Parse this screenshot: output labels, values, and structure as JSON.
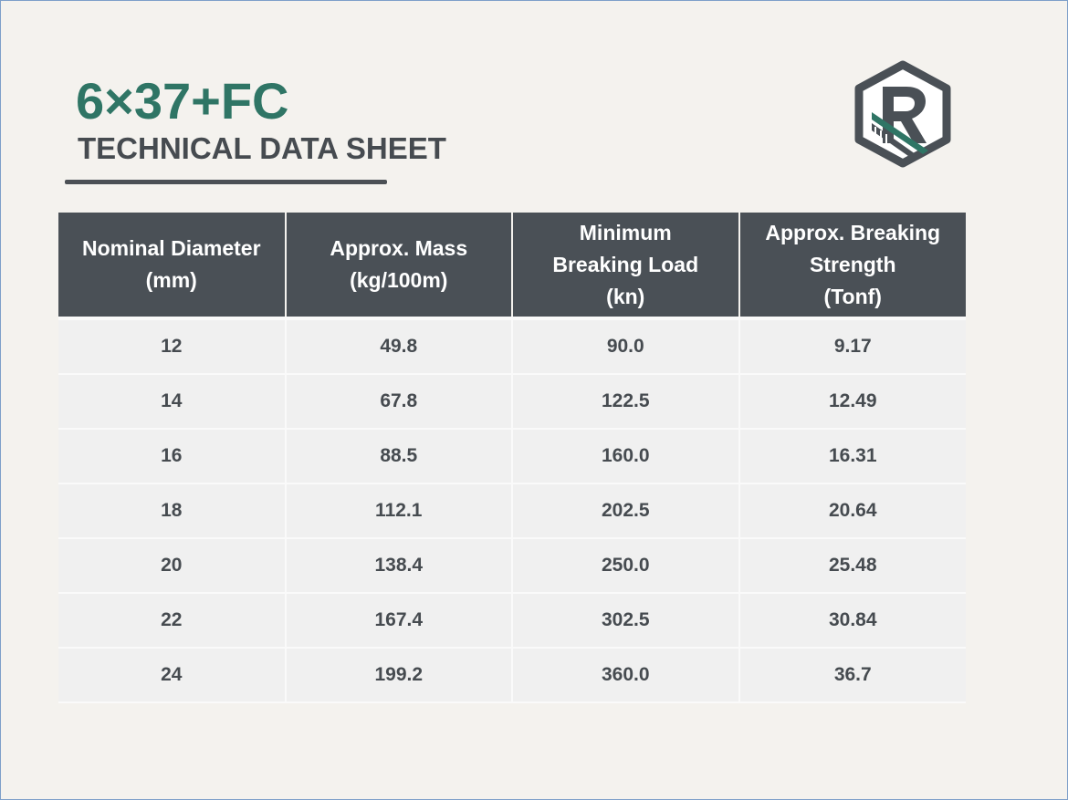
{
  "header": {
    "title": "6×37+FC",
    "subtitle": "TECHNICAL DATA SHEET"
  },
  "logo": {
    "icon": "r-hexagon-logo-icon",
    "letter": "R",
    "colors": {
      "outline": "#4a5056",
      "stripe": "#2f7565"
    }
  },
  "table": {
    "headers": [
      [
        "Nominal Diameter",
        "(mm)"
      ],
      [
        "Approx. Mass",
        "(kg/100m)"
      ],
      [
        "Minimum",
        "Breaking Load",
        "(kn)"
      ],
      [
        "Approx. Breaking",
        "Strength",
        "(Tonf)"
      ]
    ],
    "rows": [
      [
        "12",
        "49.8",
        "90.0",
        "9.17"
      ],
      [
        "14",
        "67.8",
        "122.5",
        "12.49"
      ],
      [
        "16",
        "88.5",
        "160.0",
        "16.31"
      ],
      [
        "18",
        "112.1",
        "202.5",
        "20.64"
      ],
      [
        "20",
        "138.4",
        "250.0",
        "25.48"
      ],
      [
        "22",
        "167.4",
        "302.5",
        "30.84"
      ],
      [
        "24",
        "199.2",
        "360.0",
        "36.7"
      ]
    ]
  },
  "colors": {
    "title": "#2f7565",
    "header_bg": "#4a5056",
    "cell_bg": "#f0f0f0",
    "page_bg": "#f4f2ee"
  }
}
